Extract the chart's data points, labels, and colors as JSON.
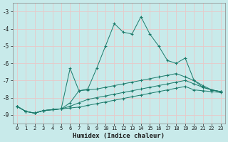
{
  "xlabel": "Humidex (Indice chaleur)",
  "background_color": "#c8eaea",
  "grid_color": "#b0d8d8",
  "line_color": "#1a7a6a",
  "xlim": [
    -0.5,
    23.5
  ],
  "ylim": [
    -9.5,
    -2.5
  ],
  "yticks": [
    -9,
    -8,
    -7,
    -6,
    -5,
    -4,
    -3
  ],
  "xticks": [
    0,
    1,
    2,
    3,
    4,
    5,
    6,
    7,
    8,
    9,
    10,
    11,
    12,
    13,
    14,
    15,
    16,
    17,
    18,
    19,
    20,
    21,
    22,
    23
  ],
  "series": [
    {
      "x": [
        0,
        1,
        2,
        3,
        4,
        5,
        6,
        7,
        8,
        9,
        10,
        11,
        12,
        13,
        14,
        15,
        16,
        17,
        18,
        19,
        20,
        21,
        22,
        23
      ],
      "y": [
        -8.5,
        -8.8,
        -8.9,
        -8.75,
        -8.7,
        -8.65,
        -8.6,
        -8.55,
        -8.45,
        -8.35,
        -8.25,
        -8.15,
        -8.05,
        -7.95,
        -7.85,
        -7.75,
        -7.65,
        -7.55,
        -7.45,
        -7.35,
        -7.55,
        -7.6,
        -7.65,
        -7.7
      ]
    },
    {
      "x": [
        0,
        1,
        2,
        3,
        4,
        5,
        6,
        7,
        8,
        9,
        10,
        11,
        12,
        13,
        14,
        15,
        16,
        17,
        18,
        19,
        20,
        21,
        22,
        23
      ],
      "y": [
        -8.5,
        -8.8,
        -8.9,
        -8.75,
        -8.7,
        -8.65,
        -8.5,
        -8.3,
        -8.1,
        -8.0,
        -7.9,
        -7.8,
        -7.7,
        -7.6,
        -7.5,
        -7.4,
        -7.3,
        -7.2,
        -7.1,
        -7.0,
        -7.2,
        -7.4,
        -7.55,
        -7.65
      ]
    },
    {
      "x": [
        0,
        1,
        2,
        3,
        4,
        5,
        6,
        7,
        8,
        9,
        10,
        11,
        12,
        13,
        14,
        15,
        16,
        17,
        18,
        19,
        20,
        21,
        22,
        23
      ],
      "y": [
        -8.5,
        -8.8,
        -8.9,
        -8.75,
        -8.7,
        -8.65,
        -8.3,
        -7.6,
        -7.55,
        -7.5,
        -7.4,
        -7.3,
        -7.2,
        -7.1,
        -7.0,
        -6.9,
        -6.8,
        -6.7,
        -6.6,
        -6.8,
        -7.0,
        -7.3,
        -7.55,
        -7.65
      ]
    },
    {
      "x": [
        0,
        1,
        2,
        3,
        4,
        5,
        6,
        7,
        8,
        9,
        10,
        11,
        12,
        13,
        14,
        15,
        16,
        17,
        18,
        19,
        20,
        21,
        22,
        23
      ],
      "y": [
        -8.5,
        -8.8,
        -8.9,
        -8.75,
        -8.7,
        -8.65,
        -6.3,
        -7.6,
        -7.5,
        -6.3,
        -5.0,
        -3.7,
        -4.2,
        -4.3,
        -3.3,
        -4.3,
        -5.0,
        -5.85,
        -6.0,
        -5.7,
        -7.0,
        -7.4,
        -7.55,
        -7.65
      ]
    }
  ]
}
